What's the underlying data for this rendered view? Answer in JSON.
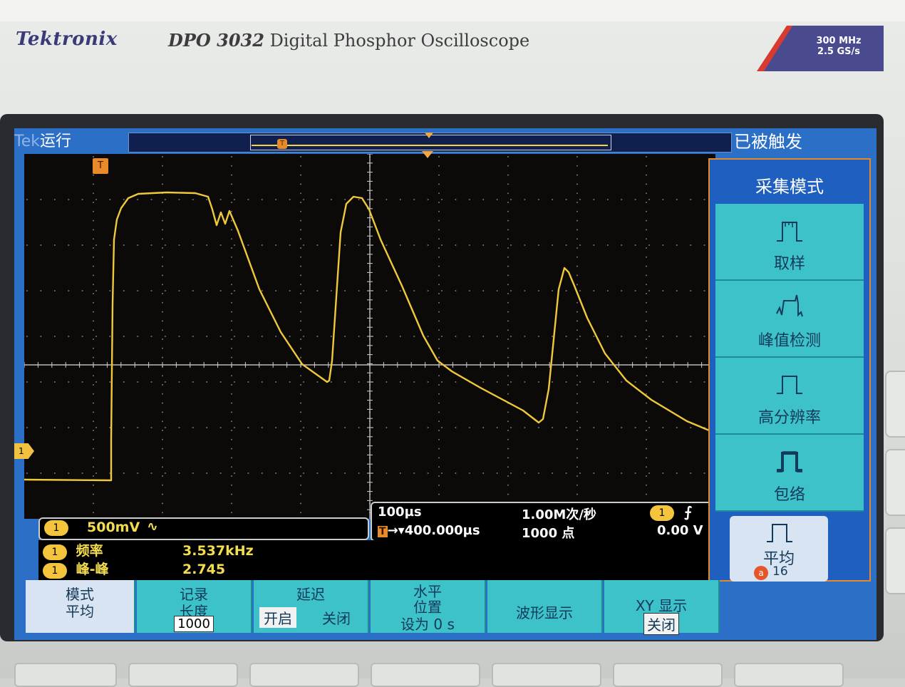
{
  "header": {
    "brand": "Tektronix",
    "model_number": "DPO 3032",
    "model_name": "Digital Phosphor Oscilloscope",
    "spec_bandwidth": "300 MHz",
    "spec_samplerate": "2.5 GS/s"
  },
  "status": {
    "tek_logo": "Tek",
    "run_state": "运行",
    "trigger_state": "已被触发"
  },
  "markers": {
    "trigger_marker": "T",
    "channel1_marker": "1"
  },
  "channel": {
    "tag": "1",
    "scale": "500mV",
    "coupling_symbol": "∿"
  },
  "timebase": {
    "scale": "100µs",
    "delay": "400.000µs",
    "sample_rate": "1.00M次/秒",
    "points": "1000 点",
    "trig_source_tag": "1",
    "trig_slope_symbol": "⨍",
    "trig_level": "0.00 V"
  },
  "measurements": [
    {
      "tag": "1",
      "label": "频率",
      "value": "3.537kHz"
    },
    {
      "tag": "1",
      "label": "峰-峰",
      "value": "2.745 V"
    }
  ],
  "side_menu": {
    "title": "采集模式",
    "items": [
      {
        "label": "取样",
        "icon": "sample-mode-icon"
      },
      {
        "label": "峰值检测",
        "icon": "peak-detect-icon"
      },
      {
        "label": "高分辨率",
        "icon": "hi-res-icon"
      },
      {
        "label": "包络",
        "icon": "envelope-icon"
      },
      {
        "label": "平均",
        "icon": "average-icon",
        "badge": "a",
        "count": "16",
        "selected": true
      }
    ]
  },
  "bottom_menu": [
    {
      "line1": "模式",
      "line2": "平均"
    },
    {
      "line1": "记录",
      "line2": "长度",
      "value": "1000"
    },
    {
      "line1": "延迟",
      "opt_on": "开启",
      "opt_off": "关闭"
    },
    {
      "line1": "水平",
      "line2": "位置",
      "line3": "设为 0 s"
    },
    {
      "line1": "波形显示"
    },
    {
      "line1": "XY 显示",
      "line2": "关闭"
    }
  ],
  "colors": {
    "trace": "#f0c93a",
    "screen_bg": "#0b0a08",
    "ui_blue": "#2b6fc7",
    "menu_cyan": "#3dc2c9",
    "accent_orange": "#e58a2b"
  }
}
